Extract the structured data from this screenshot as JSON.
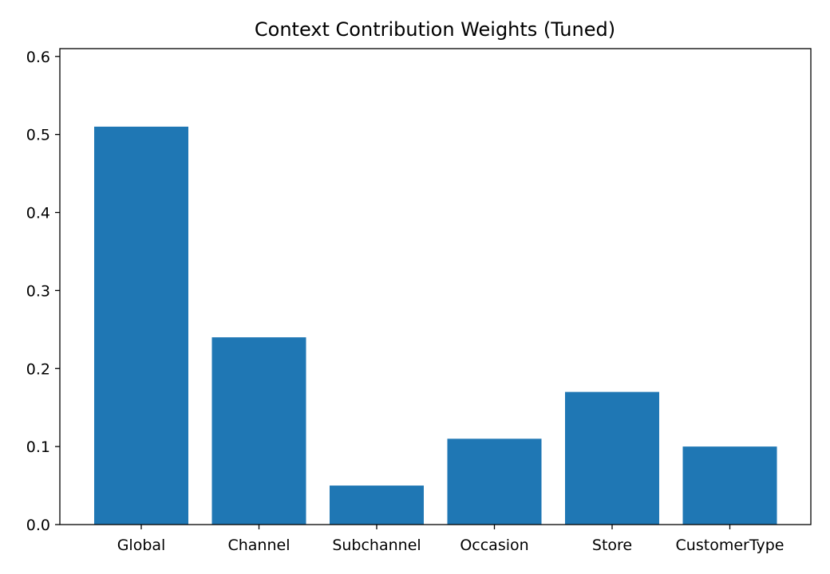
{
  "chart_data": {
    "type": "bar",
    "title": "Context Contribution Weights (Tuned)",
    "xlabel": "",
    "ylabel": "",
    "categories": [
      "Global",
      "Channel",
      "Subchannel",
      "Occasion",
      "Store",
      "CustomerType"
    ],
    "values": [
      0.51,
      0.24,
      0.05,
      0.11,
      0.17,
      0.1
    ],
    "ylim": [
      0,
      0.61
    ],
    "yticks": [
      0.0,
      0.1,
      0.2,
      0.3,
      0.4,
      0.5,
      0.6
    ],
    "ytick_labels": [
      "0.0",
      "0.1",
      "0.2",
      "0.3",
      "0.4",
      "0.5",
      "0.6"
    ],
    "grid": false,
    "legend": "none",
    "bar_color": "#1f77b4"
  }
}
